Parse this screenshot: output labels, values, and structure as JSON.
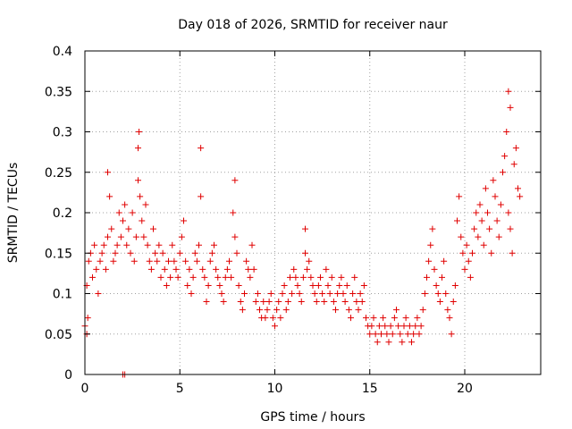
{
  "chart_data": {
    "type": "scatter",
    "title": "Day 018 of 2026, SRMTID for receiver naur",
    "xlabel": "GPS time / hours",
    "ylabel": "SRMTID / TECUs",
    "xlim": [
      0,
      24
    ],
    "ylim": [
      0,
      0.4
    ],
    "grid": true,
    "x_ticks": [
      0,
      5,
      10,
      15,
      20
    ],
    "x_tick_labels": [
      "0",
      "5",
      "10",
      "15",
      "20"
    ],
    "y_ticks": [
      0,
      0.05,
      0.1,
      0.15,
      0.2,
      0.25,
      0.3,
      0.35,
      0.4
    ],
    "y_tick_labels": [
      "0",
      "0.05",
      "0.1",
      "0.15",
      "0.2",
      "0.25",
      "0.3",
      "0.35",
      "0.4"
    ],
    "marker": "+",
    "color": "#e00000",
    "series": [
      {
        "name": "SRMTID",
        "x": [
          0.0,
          0.1,
          0.2,
          0.3,
          0.4,
          0.5,
          0.6,
          0.7,
          0.8,
          0.9,
          1.0,
          1.1,
          1.2,
          1.3,
          1.4,
          1.5,
          1.6,
          1.7,
          1.8,
          1.9,
          2.0,
          2.1,
          2.2,
          2.3,
          2.4,
          2.5,
          2.6,
          2.7,
          2.8,
          2.9,
          3.0,
          3.1,
          3.2,
          3.3,
          3.4,
          3.5,
          3.6,
          3.7,
          3.8,
          3.9,
          4.0,
          4.1,
          4.2,
          4.3,
          4.4,
          4.5,
          4.6,
          4.7,
          4.8,
          4.9,
          5.0,
          5.1,
          5.2,
          5.3,
          5.4,
          5.5,
          5.6,
          5.7,
          5.8,
          5.9,
          6.0,
          6.1,
          6.2,
          6.3,
          6.4,
          6.5,
          6.6,
          6.7,
          6.8,
          6.9,
          7.0,
          7.1,
          7.2,
          7.3,
          7.4,
          7.5,
          7.6,
          7.7,
          7.8,
          7.9,
          8.0,
          8.1,
          8.2,
          8.3,
          8.4,
          8.5,
          8.6,
          8.7,
          8.8,
          8.9,
          9.0,
          9.1,
          9.2,
          9.3,
          9.4,
          9.5,
          9.6,
          9.7,
          9.8,
          9.9,
          10.0,
          10.1,
          10.2,
          10.3,
          10.4,
          10.5,
          10.6,
          10.7,
          10.8,
          10.9,
          11.0,
          11.1,
          11.2,
          11.3,
          11.4,
          11.5,
          11.6,
          11.7,
          11.8,
          11.9,
          12.0,
          12.1,
          12.2,
          12.3,
          12.4,
          12.5,
          12.6,
          12.7,
          12.8,
          12.9,
          13.0,
          13.1,
          13.2,
          13.3,
          13.4,
          13.5,
          13.6,
          13.7,
          13.8,
          13.9,
          14.0,
          14.1,
          14.2,
          14.3,
          14.4,
          14.5,
          14.6,
          14.7,
          14.8,
          14.9,
          15.0,
          15.1,
          15.2,
          15.3,
          15.4,
          15.5,
          15.6,
          15.7,
          15.8,
          15.9,
          16.0,
          16.1,
          16.2,
          16.3,
          16.4,
          16.5,
          16.6,
          16.7,
          16.8,
          16.9,
          17.0,
          17.1,
          17.2,
          17.3,
          17.4,
          17.5,
          17.6,
          17.7,
          17.8,
          17.9,
          18.0,
          18.1,
          18.2,
          18.3,
          18.4,
          18.5,
          18.6,
          18.7,
          18.8,
          18.9,
          19.0,
          19.1,
          19.2,
          19.3,
          19.4,
          19.5,
          19.6,
          19.7,
          19.8,
          19.9,
          20.0,
          20.1,
          20.2,
          20.3,
          20.4,
          20.5,
          20.6,
          20.7,
          20.8,
          20.9,
          21.0,
          21.1,
          21.2,
          21.3,
          21.4,
          21.5,
          21.6,
          21.7,
          21.8,
          21.9,
          22.0,
          22.1,
          22.2,
          22.3,
          22.4,
          22.5,
          22.6,
          22.7,
          22.8,
          22.9,
          2.0,
          2.1,
          0.1,
          0.15,
          1.2,
          2.8,
          2.85,
          6.1,
          7.9,
          11.6,
          22.3,
          22.4
        ],
        "y": [
          0.06,
          0.11,
          0.14,
          0.15,
          0.12,
          0.16,
          0.13,
          0.1,
          0.14,
          0.15,
          0.16,
          0.13,
          0.17,
          0.22,
          0.18,
          0.14,
          0.15,
          0.16,
          0.2,
          0.17,
          0.19,
          0.21,
          0.16,
          0.18,
          0.15,
          0.2,
          0.14,
          0.17,
          0.24,
          0.22,
          0.19,
          0.17,
          0.21,
          0.16,
          0.14,
          0.13,
          0.18,
          0.15,
          0.14,
          0.16,
          0.12,
          0.15,
          0.13,
          0.11,
          0.14,
          0.12,
          0.16,
          0.14,
          0.13,
          0.12,
          0.15,
          0.17,
          0.19,
          0.14,
          0.11,
          0.13,
          0.1,
          0.12,
          0.15,
          0.14,
          0.16,
          0.22,
          0.13,
          0.12,
          0.09,
          0.11,
          0.14,
          0.15,
          0.16,
          0.13,
          0.12,
          0.11,
          0.1,
          0.09,
          0.12,
          0.13,
          0.14,
          0.12,
          0.2,
          0.17,
          0.15,
          0.11,
          0.09,
          0.08,
          0.1,
          0.14,
          0.13,
          0.12,
          0.16,
          0.13,
          0.09,
          0.1,
          0.08,
          0.07,
          0.09,
          0.07,
          0.08,
          0.09,
          0.1,
          0.07,
          0.06,
          0.08,
          0.09,
          0.07,
          0.1,
          0.11,
          0.08,
          0.09,
          0.12,
          0.1,
          0.13,
          0.12,
          0.11,
          0.1,
          0.09,
          0.12,
          0.15,
          0.13,
          0.14,
          0.12,
          0.11,
          0.1,
          0.09,
          0.11,
          0.12,
          0.1,
          0.09,
          0.13,
          0.11,
          0.1,
          0.12,
          0.09,
          0.08,
          0.1,
          0.11,
          0.12,
          0.1,
          0.09,
          0.11,
          0.08,
          0.07,
          0.1,
          0.12,
          0.09,
          0.08,
          0.1,
          0.09,
          0.11,
          0.07,
          0.06,
          0.05,
          0.06,
          0.07,
          0.05,
          0.04,
          0.06,
          0.05,
          0.07,
          0.06,
          0.05,
          0.04,
          0.06,
          0.05,
          0.07,
          0.08,
          0.06,
          0.05,
          0.04,
          0.06,
          0.07,
          0.05,
          0.06,
          0.04,
          0.05,
          0.06,
          0.07,
          0.05,
          0.06,
          0.08,
          0.1,
          0.12,
          0.14,
          0.16,
          0.18,
          0.13,
          0.11,
          0.1,
          0.09,
          0.12,
          0.14,
          0.1,
          0.08,
          0.07,
          0.05,
          0.09,
          0.11,
          0.19,
          0.22,
          0.17,
          0.15,
          0.13,
          0.16,
          0.14,
          0.12,
          0.15,
          0.18,
          0.2,
          0.17,
          0.21,
          0.19,
          0.16,
          0.23,
          0.2,
          0.18,
          0.15,
          0.24,
          0.22,
          0.19,
          0.17,
          0.21,
          0.25,
          0.27,
          0.3,
          0.2,
          0.18,
          0.15,
          0.26,
          0.28,
          0.23,
          0.22,
          0.0,
          0.0,
          0.05,
          0.07,
          0.25,
          0.28,
          0.3,
          0.28,
          0.24,
          0.18,
          0.35,
          0.33
        ]
      }
    ]
  }
}
